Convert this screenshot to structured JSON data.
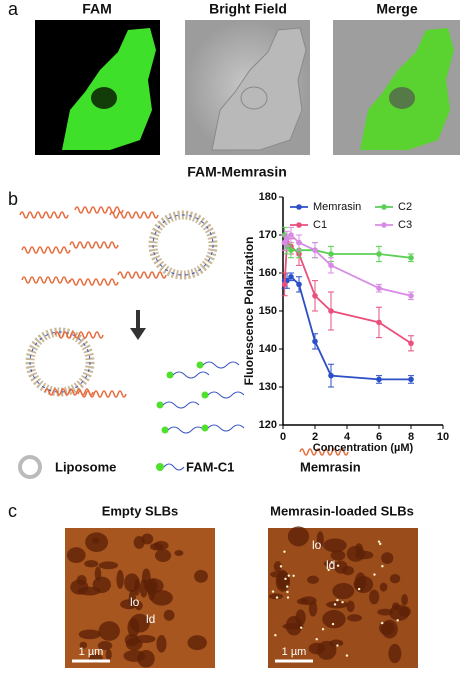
{
  "figure": {
    "panel_labels": [
      "a",
      "b",
      "c"
    ],
    "a_titles": [
      "FAM",
      "Bright Field",
      "Merge"
    ],
    "a_caption": "FAM-Memrasin",
    "b_legend": [
      "Liposome",
      "FAM-C1",
      "Memrasin"
    ],
    "c_titles": [
      "Empty SLBs",
      "Memrasin-loaded SLBs"
    ],
    "c_phase_labels": [
      "lo",
      "ld"
    ],
    "scale_bar": "1 µm"
  },
  "chart_data": {
    "type": "line",
    "x_label": "Concentration (µM)",
    "y_label": "Fluorescence Polarization",
    "x": [
      0.1,
      0.25,
      0.5,
      1,
      2,
      3,
      6,
      8
    ],
    "series": [
      {
        "name": "Memrasin",
        "color": "#2b4fc7",
        "values": [
          158,
          158,
          159,
          157,
          142,
          133,
          132,
          132
        ],
        "errors": [
          2,
          2,
          1,
          2,
          2,
          3,
          1,
          1
        ]
      },
      {
        "name": "C1",
        "color": "#e9507c",
        "values": [
          157,
          168,
          167,
          165,
          154,
          150,
          147,
          141.5
        ],
        "errors": [
          3,
          2,
          2,
          3,
          4,
          5,
          4,
          2
        ]
      },
      {
        "name": "C2",
        "color": "#5ccf57",
        "values": [
          170,
          167,
          166,
          166,
          166,
          165,
          165,
          164
        ],
        "errors": [
          2,
          2,
          2,
          2,
          2,
          2,
          2,
          1
        ]
      },
      {
        "name": "C3",
        "color": "#d88be6",
        "values": [
          168,
          169,
          170,
          168,
          166,
          162,
          156,
          154
        ],
        "errors": [
          2,
          2,
          2,
          2,
          2,
          2,
          1,
          1
        ]
      }
    ],
    "xlim": [
      0,
      10
    ],
    "xticks": [
      0,
      2,
      4,
      6,
      8,
      10
    ],
    "ylim": [
      120,
      180
    ],
    "yticks": [
      120,
      130,
      140,
      150,
      160,
      170,
      180
    ]
  }
}
